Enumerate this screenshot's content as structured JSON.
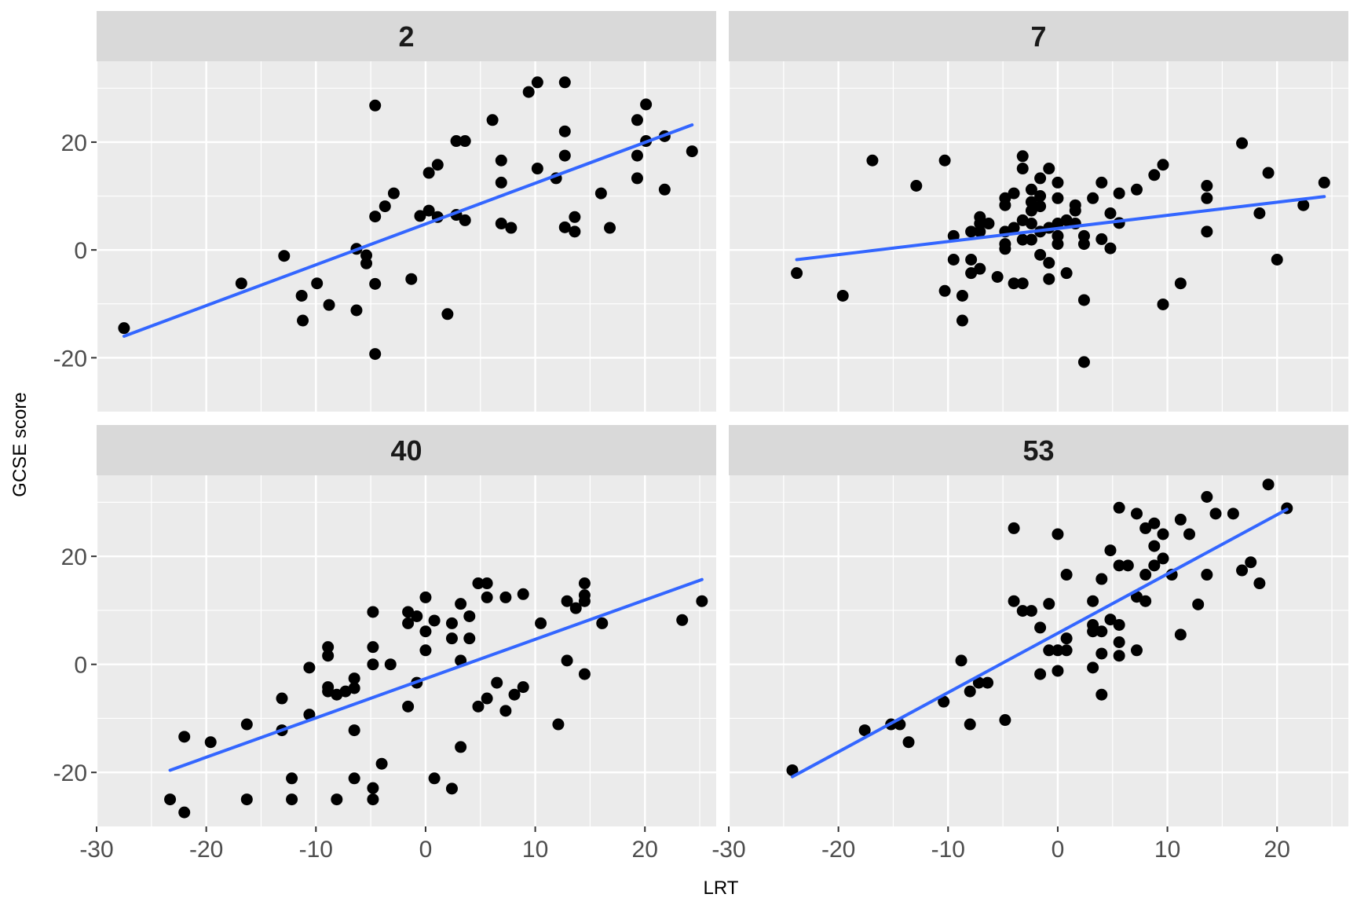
{
  "chart_data": {
    "type": "scatter",
    "xlabel": "LRT",
    "ylabel": "GCSE score",
    "xlim": [
      -30,
      26.5
    ],
    "ylim": [
      -30,
      35
    ],
    "x_ticks": [
      -30,
      -20,
      -10,
      0,
      10,
      20
    ],
    "y_ticks": [
      -20,
      0,
      20
    ],
    "grid": true,
    "legend": "none",
    "colors": {
      "point": "#000000",
      "fit_line": "#3366ff",
      "panel_bg": "#ebebeb",
      "strip_bg": "#d9d9d9",
      "grid": "#ffffff"
    },
    "panels": [
      {
        "label": "2",
        "fit_line": [
          [
            -27.5,
            -16.0
          ],
          [
            24.3,
            23.2
          ]
        ],
        "points": [
          [
            -27.5,
            -14.5
          ],
          [
            -16.8,
            -6.2
          ],
          [
            -12.9,
            -1.1
          ],
          [
            -11.3,
            -8.5
          ],
          [
            -11.2,
            -13.1
          ],
          [
            -9.9,
            -6.2
          ],
          [
            -8.8,
            -10.2
          ],
          [
            -6.3,
            0.2
          ],
          [
            -6.3,
            -11.2
          ],
          [
            -5.4,
            -1.0
          ],
          [
            -5.4,
            -2.5
          ],
          [
            -4.6,
            26.8
          ],
          [
            -4.6,
            -19.3
          ],
          [
            -4.6,
            -6.3
          ],
          [
            -4.6,
            6.2
          ],
          [
            -3.7,
            8.1
          ],
          [
            -2.9,
            10.5
          ],
          [
            -1.3,
            -5.4
          ],
          [
            -0.5,
            6.3
          ],
          [
            0.3,
            14.3
          ],
          [
            0.3,
            7.3
          ],
          [
            1.1,
            15.8
          ],
          [
            1.1,
            6.1
          ],
          [
            2.0,
            -11.9
          ],
          [
            2.8,
            6.5
          ],
          [
            2.8,
            20.2
          ],
          [
            3.6,
            20.2
          ],
          [
            3.6,
            5.5
          ],
          [
            6.1,
            24.1
          ],
          [
            6.9,
            16.6
          ],
          [
            6.9,
            12.5
          ],
          [
            6.9,
            4.9
          ],
          [
            7.8,
            4.1
          ],
          [
            9.4,
            29.3
          ],
          [
            10.2,
            31.1
          ],
          [
            10.2,
            15.1
          ],
          [
            11.9,
            13.3
          ],
          [
            12.7,
            31.1
          ],
          [
            12.7,
            22.0
          ],
          [
            12.7,
            17.5
          ],
          [
            12.7,
            4.2
          ],
          [
            13.6,
            6.1
          ],
          [
            13.6,
            3.4
          ],
          [
            16.0,
            10.5
          ],
          [
            16.8,
            4.1
          ],
          [
            19.3,
            24.1
          ],
          [
            19.3,
            17.5
          ],
          [
            19.3,
            13.3
          ],
          [
            20.1,
            27.0
          ],
          [
            20.1,
            20.2
          ],
          [
            21.8,
            21.1
          ],
          [
            21.8,
            11.2
          ],
          [
            24.3,
            18.3
          ]
        ]
      },
      {
        "label": "7",
        "fit_line": [
          [
            -23.8,
            -1.8
          ],
          [
            24.3,
            9.9
          ]
        ],
        "points": [
          [
            -23.8,
            -4.3
          ],
          [
            -19.6,
            -8.5
          ],
          [
            -16.9,
            16.6
          ],
          [
            -12.9,
            11.9
          ],
          [
            -10.3,
            16.6
          ],
          [
            -10.3,
            -7.6
          ],
          [
            -9.5,
            2.6
          ],
          [
            -9.5,
            -1.8
          ],
          [
            -8.7,
            -8.5
          ],
          [
            -8.7,
            -13.1
          ],
          [
            -7.9,
            3.4
          ],
          [
            -7.9,
            -1.8
          ],
          [
            -7.9,
            -4.3
          ],
          [
            -7.1,
            6.1
          ],
          [
            -7.1,
            4.9
          ],
          [
            -7.1,
            3.4
          ],
          [
            -7.1,
            -3.5
          ],
          [
            -6.3,
            4.9
          ],
          [
            -5.5,
            -5.0
          ],
          [
            -4.8,
            9.6
          ],
          [
            -4.8,
            8.3
          ],
          [
            -4.8,
            3.4
          ],
          [
            -4.8,
            1.1
          ],
          [
            -4.8,
            0.2
          ],
          [
            -4.0,
            10.5
          ],
          [
            -4.0,
            4.1
          ],
          [
            -4.0,
            -6.2
          ],
          [
            -3.2,
            17.4
          ],
          [
            -3.2,
            15.1
          ],
          [
            -3.2,
            5.5
          ],
          [
            -3.2,
            1.9
          ],
          [
            -3.2,
            -6.2
          ],
          [
            -2.4,
            11.2
          ],
          [
            -2.4,
            8.9
          ],
          [
            -2.4,
            7.3
          ],
          [
            -2.4,
            4.9
          ],
          [
            -2.4,
            1.9
          ],
          [
            -1.6,
            13.3
          ],
          [
            -1.6,
            10.0
          ],
          [
            -1.6,
            8.1
          ],
          [
            -1.6,
            3.4
          ],
          [
            -1.6,
            -0.9
          ],
          [
            -0.8,
            15.1
          ],
          [
            -0.8,
            4.1
          ],
          [
            -0.8,
            -2.4
          ],
          [
            -0.8,
            -5.4
          ],
          [
            0.0,
            12.5
          ],
          [
            0.0,
            9.6
          ],
          [
            0.0,
            4.9
          ],
          [
            0.0,
            2.6
          ],
          [
            0.0,
            1.1
          ],
          [
            0.8,
            5.5
          ],
          [
            0.8,
            -4.3
          ],
          [
            1.6,
            8.3
          ],
          [
            1.6,
            7.3
          ],
          [
            1.6,
            4.9
          ],
          [
            2.4,
            2.6
          ],
          [
            2.4,
            1.1
          ],
          [
            2.4,
            -9.3
          ],
          [
            2.4,
            -20.8
          ],
          [
            3.2,
            9.6
          ],
          [
            4.0,
            12.5
          ],
          [
            4.0,
            2.0
          ],
          [
            4.8,
            6.8
          ],
          [
            4.8,
            0.3
          ],
          [
            5.6,
            10.5
          ],
          [
            5.6,
            5.0
          ],
          [
            7.2,
            11.2
          ],
          [
            8.8,
            13.9
          ],
          [
            9.6,
            15.8
          ],
          [
            9.6,
            -10.1
          ],
          [
            11.2,
            -6.2
          ],
          [
            13.6,
            11.9
          ],
          [
            13.6,
            9.6
          ],
          [
            13.6,
            3.4
          ],
          [
            16.8,
            19.8
          ],
          [
            18.4,
            6.8
          ],
          [
            19.2,
            14.3
          ],
          [
            20.0,
            -1.8
          ],
          [
            22.4,
            8.3
          ],
          [
            24.3,
            12.5
          ]
        ]
      },
      {
        "label": "40",
        "fit_line": [
          [
            -23.3,
            -19.6
          ],
          [
            25.2,
            15.7
          ]
        ],
        "points": [
          [
            -23.3,
            -25.0
          ],
          [
            -22.0,
            -27.4
          ],
          [
            -22.0,
            -13.4
          ],
          [
            -19.6,
            -14.4
          ],
          [
            -16.3,
            -25.0
          ],
          [
            -16.3,
            -11.1
          ],
          [
            -13.1,
            -6.3
          ],
          [
            -13.1,
            -12.2
          ],
          [
            -12.2,
            -21.1
          ],
          [
            -12.2,
            -25.0
          ],
          [
            -10.6,
            -0.6
          ],
          [
            -10.6,
            -9.3
          ],
          [
            -8.9,
            3.2
          ],
          [
            -8.9,
            1.6
          ],
          [
            -8.9,
            -4.2
          ],
          [
            -8.9,
            -5.0
          ],
          [
            -8.1,
            -5.6
          ],
          [
            -8.1,
            -25.0
          ],
          [
            -7.3,
            -5.0
          ],
          [
            -6.5,
            -4.4
          ],
          [
            -6.5,
            -2.6
          ],
          [
            -6.5,
            -12.2
          ],
          [
            -6.5,
            -21.1
          ],
          [
            -4.8,
            9.7
          ],
          [
            -4.8,
            3.2
          ],
          [
            -4.8,
            0.0
          ],
          [
            -4.8,
            -22.9
          ],
          [
            -4.8,
            -25.0
          ],
          [
            -4.0,
            -18.4
          ],
          [
            -3.2,
            0.0
          ],
          [
            -1.6,
            9.7
          ],
          [
            -1.6,
            7.6
          ],
          [
            -1.6,
            -7.8
          ],
          [
            -0.8,
            8.9
          ],
          [
            -0.8,
            -3.4
          ],
          [
            0.0,
            12.4
          ],
          [
            0.0,
            6.1
          ],
          [
            0.0,
            2.6
          ],
          [
            0.8,
            8.1
          ],
          [
            0.8,
            -21.1
          ],
          [
            2.4,
            7.6
          ],
          [
            2.4,
            4.8
          ],
          [
            2.4,
            -23.0
          ],
          [
            3.2,
            11.2
          ],
          [
            3.2,
            0.7
          ],
          [
            3.2,
            -15.3
          ],
          [
            4.0,
            8.9
          ],
          [
            4.0,
            4.8
          ],
          [
            4.8,
            15.0
          ],
          [
            4.8,
            -7.8
          ],
          [
            5.6,
            15.0
          ],
          [
            5.6,
            12.4
          ],
          [
            5.6,
            -6.3
          ],
          [
            6.5,
            -3.4
          ],
          [
            7.3,
            12.4
          ],
          [
            7.3,
            -8.6
          ],
          [
            8.1,
            -5.6
          ],
          [
            8.9,
            13.0
          ],
          [
            8.9,
            -4.2
          ],
          [
            10.5,
            7.6
          ],
          [
            12.1,
            -11.1
          ],
          [
            12.9,
            11.7
          ],
          [
            12.9,
            0.7
          ],
          [
            13.7,
            10.4
          ],
          [
            14.5,
            15.0
          ],
          [
            14.5,
            12.8
          ],
          [
            14.5,
            11.7
          ],
          [
            14.5,
            -1.8
          ],
          [
            16.1,
            7.6
          ],
          [
            23.4,
            8.2
          ],
          [
            25.2,
            11.7
          ]
        ]
      },
      {
        "label": "53",
        "fit_line": [
          [
            -24.2,
            -20.8
          ],
          [
            20.9,
            28.7
          ]
        ],
        "points": [
          [
            -24.2,
            -19.6
          ],
          [
            -17.6,
            -12.2
          ],
          [
            -15.2,
            -11.1
          ],
          [
            -14.4,
            -11.1
          ],
          [
            -13.6,
            -14.4
          ],
          [
            -10.4,
            -6.9
          ],
          [
            -8.8,
            0.7
          ],
          [
            -8.0,
            -5.0
          ],
          [
            -8.0,
            -11.1
          ],
          [
            -7.2,
            -3.4
          ],
          [
            -6.4,
            -3.4
          ],
          [
            -4.8,
            -10.3
          ],
          [
            -4.0,
            25.2
          ],
          [
            -4.0,
            11.7
          ],
          [
            -3.2,
            9.9
          ],
          [
            -2.4,
            9.9
          ],
          [
            -1.6,
            6.8
          ],
          [
            -1.6,
            -1.8
          ],
          [
            -0.8,
            11.2
          ],
          [
            -0.8,
            2.6
          ],
          [
            0.0,
            24.1
          ],
          [
            0.0,
            2.6
          ],
          [
            0.0,
            -1.2
          ],
          [
            0.8,
            16.6
          ],
          [
            0.8,
            4.8
          ],
          [
            0.8,
            2.6
          ],
          [
            3.2,
            11.7
          ],
          [
            3.2,
            7.3
          ],
          [
            3.2,
            6.1
          ],
          [
            3.2,
            -0.6
          ],
          [
            4.0,
            15.8
          ],
          [
            4.0,
            6.1
          ],
          [
            4.0,
            2.0
          ],
          [
            4.0,
            -5.6
          ],
          [
            4.8,
            21.1
          ],
          [
            4.8,
            8.3
          ],
          [
            5.6,
            29.0
          ],
          [
            5.6,
            18.3
          ],
          [
            5.6,
            7.3
          ],
          [
            5.6,
            4.1
          ],
          [
            5.6,
            1.6
          ],
          [
            6.4,
            18.3
          ],
          [
            7.2,
            27.9
          ],
          [
            7.2,
            12.5
          ],
          [
            7.2,
            2.6
          ],
          [
            8.0,
            25.2
          ],
          [
            8.0,
            16.6
          ],
          [
            8.0,
            11.7
          ],
          [
            8.8,
            26.1
          ],
          [
            8.8,
            21.9
          ],
          [
            8.8,
            18.3
          ],
          [
            9.6,
            24.1
          ],
          [
            9.6,
            19.6
          ],
          [
            10.4,
            16.6
          ],
          [
            11.2,
            26.8
          ],
          [
            11.2,
            5.5
          ],
          [
            12.0,
            24.1
          ],
          [
            12.8,
            11.1
          ],
          [
            13.6,
            31.0
          ],
          [
            13.6,
            16.6
          ],
          [
            14.4,
            27.9
          ],
          [
            16.0,
            27.9
          ],
          [
            16.8,
            17.4
          ],
          [
            17.6,
            18.9
          ],
          [
            18.4,
            15.0
          ],
          [
            19.2,
            33.3
          ],
          [
            20.9,
            28.9
          ]
        ]
      }
    ]
  }
}
